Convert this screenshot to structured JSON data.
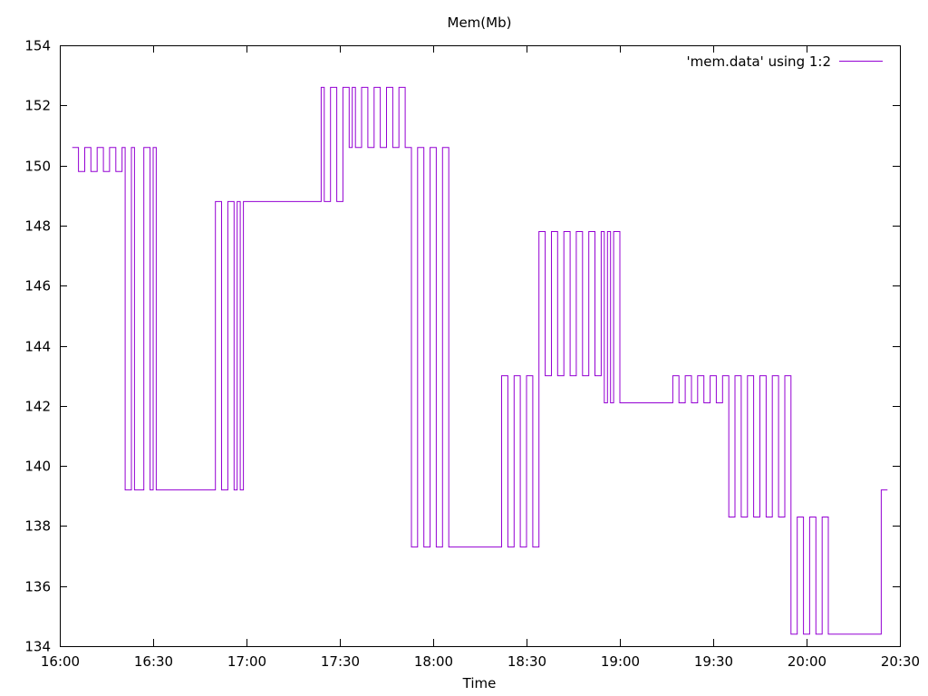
{
  "chart_data": {
    "type": "line",
    "title": "Mem(Mb)",
    "xlabel": "Time",
    "ylabel": "",
    "xlim": [
      "16:00",
      "20:30"
    ],
    "ylim": [
      134,
      154
    ],
    "grid": false,
    "legend": "top-right",
    "xticks": [
      "16:00",
      "16:30",
      "17:00",
      "17:30",
      "18:00",
      "18:30",
      "19:00",
      "19:30",
      "20:00",
      "20:30"
    ],
    "yticks": [
      "134",
      "136",
      "138",
      "140",
      "142",
      "144",
      "146",
      "148",
      "150",
      "152",
      "154"
    ],
    "series": [
      {
        "name": "'mem.data' using 1:2",
        "color": "#9400d3",
        "x": [
          "16:04",
          "16:06",
          "16:08",
          "16:10",
          "16:12",
          "16:14",
          "16:16",
          "16:18",
          "16:20",
          "16:21",
          "16:23",
          "16:24",
          "16:25",
          "16:27",
          "16:29",
          "16:30",
          "16:31",
          "16:32",
          "16:33",
          "16:40",
          "16:50",
          "16:52",
          "16:54",
          "16:56",
          "16:57",
          "16:58",
          "16:59",
          "17:00",
          "17:01",
          "17:10",
          "17:20",
          "17:24",
          "17:25",
          "17:27",
          "17:29",
          "17:31",
          "17:33",
          "17:34",
          "17:35",
          "17:37",
          "17:39",
          "17:41",
          "17:43",
          "17:45",
          "17:47",
          "17:49",
          "17:51",
          "17:53",
          "17:55",
          "17:57",
          "17:59",
          "18:01",
          "18:03",
          "18:05",
          "18:07",
          "18:10",
          "18:20",
          "18:22",
          "18:24",
          "18:26",
          "18:28",
          "18:30",
          "18:32",
          "18:34",
          "18:36",
          "18:38",
          "18:40",
          "18:42",
          "18:44",
          "18:46",
          "18:48",
          "18:50",
          "18:52",
          "18:54",
          "18:55",
          "18:56",
          "18:57",
          "18:58",
          "19:00",
          "19:10",
          "19:15",
          "19:17",
          "19:19",
          "19:21",
          "19:23",
          "19:25",
          "19:27",
          "19:29",
          "19:31",
          "19:33",
          "19:35",
          "19:37",
          "19:39",
          "19:41",
          "19:43",
          "19:45",
          "19:47",
          "19:49",
          "19:51",
          "19:53",
          "19:55",
          "19:57",
          "19:59",
          "20:01",
          "20:03",
          "20:05",
          "20:07",
          "20:10",
          "20:15",
          "20:20",
          "20:22",
          "20:24",
          "20:26"
        ],
        "values": [
          150.6,
          149.8,
          150.6,
          149.8,
          150.6,
          149.8,
          150.6,
          149.8,
          150.6,
          139.2,
          150.6,
          139.2,
          139.2,
          150.6,
          139.2,
          150.6,
          139.2,
          139.2,
          139.2,
          139.2,
          148.8,
          139.2,
          148.8,
          139.2,
          148.8,
          139.2,
          148.8,
          148.8,
          148.8,
          148.8,
          148.8,
          152.6,
          148.8,
          152.6,
          148.8,
          152.6,
          150.6,
          152.6,
          150.6,
          152.6,
          150.6,
          152.6,
          150.6,
          152.6,
          150.6,
          152.6,
          150.6,
          137.3,
          150.6,
          137.3,
          150.6,
          137.3,
          150.6,
          137.3,
          137.3,
          137.3,
          137.3,
          143.0,
          137.3,
          143.0,
          137.3,
          143.0,
          137.3,
          147.8,
          143.0,
          147.8,
          143.0,
          147.8,
          143.0,
          147.8,
          143.0,
          147.8,
          143.0,
          147.8,
          142.1,
          147.8,
          142.1,
          147.8,
          142.1,
          142.1,
          142.1,
          143.0,
          142.1,
          143.0,
          142.1,
          143.0,
          142.1,
          143.0,
          142.1,
          143.0,
          138.3,
          143.0,
          138.3,
          143.0,
          138.3,
          143.0,
          138.3,
          143.0,
          138.3,
          143.0,
          134.4,
          138.3,
          134.4,
          138.3,
          134.4,
          138.3,
          134.4,
          134.4,
          134.4,
          134.4,
          134.4,
          139.2,
          139.2
        ]
      }
    ]
  }
}
